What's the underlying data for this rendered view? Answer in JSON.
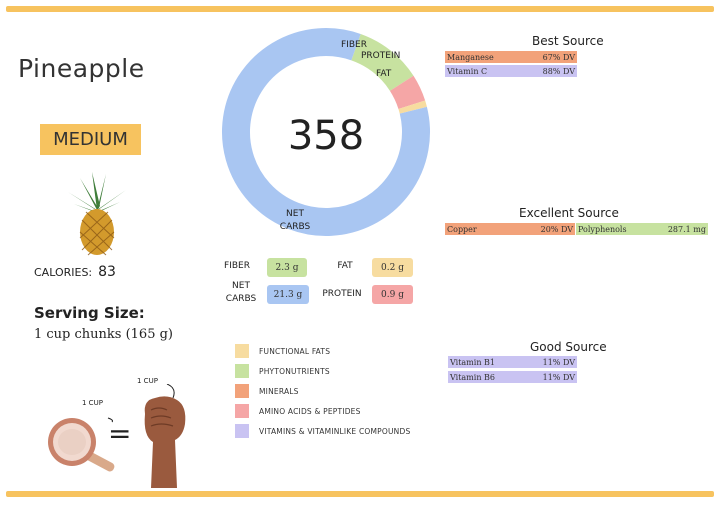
{
  "food": {
    "name": "Pineapple",
    "size": "MEDIUM",
    "calories_label": "CALORIES:",
    "calories_value": "83",
    "serving_title": "Serving Size:",
    "serving_value": "1 cup chunks (165 g)"
  },
  "donut": {
    "center_value": "358",
    "segments": [
      {
        "label": "FIBER",
        "fraction": 0.105,
        "color": "#c7e2a0"
      },
      {
        "label": "PROTEIN",
        "fraction": 0.042,
        "color": "#f5a6a6"
      },
      {
        "label": "FAT",
        "fraction": 0.01,
        "color": "#f7dca0"
      },
      {
        "label": "NET CARBS",
        "fraction": 0.843,
        "color": "#a9c6f2"
      }
    ],
    "net_carbs_label_line1": "NET",
    "net_carbs_label_line2": "CARBS"
  },
  "macros": {
    "fiber_label": "FIBER",
    "fiber_value": "2.3 g",
    "fat_label": "FAT",
    "fat_value": "0.2 g",
    "net_label_1": "NET",
    "net_label_2": "CARBS",
    "net_value": "21.3 g",
    "protein_label": "PROTEIN",
    "protein_value": "0.9 g",
    "fiber_color": "#c7e2a0",
    "fat_color": "#f7dca0",
    "net_color": "#a9c6f2",
    "protein_color": "#f5a6a6"
  },
  "legend": [
    {
      "label": "FUNCTIONAL FATS",
      "color": "#f7dca0"
    },
    {
      "label": "PHYTONUTRIENTS",
      "color": "#c7e2a0"
    },
    {
      "label": "MINERALS",
      "color": "#f2a27a"
    },
    {
      "label": "AMINO ACIDS & PEPTIDES",
      "color": "#f5a6a6"
    },
    {
      "label": "VITAMINS & VITAMINLIKE COMPOUNDS",
      "color": "#c9c3f2"
    }
  ],
  "best_source": {
    "title": "Best Source",
    "rows": [
      {
        "name": "Manganese",
        "value": "67% DV",
        "color": "#f2a27a"
      },
      {
        "name": "Vitamin C",
        "value": "88% DV",
        "color": "#c9c3f2"
      }
    ]
  },
  "excellent_source": {
    "title": "Excellent Source",
    "rows": [
      {
        "name": "Copper",
        "value": "20% DV",
        "color": "#f2a27a"
      },
      {
        "name": "Polyphenols",
        "value": "287.1 mg",
        "color": "#c7e2a0"
      }
    ]
  },
  "good_source": {
    "title": "Good Source",
    "rows": [
      {
        "name": "Vitamin B1",
        "value": "11% DV",
        "color": "#c9c3f2"
      },
      {
        "name": "Vitamin B6",
        "value": "11% DV",
        "color": "#c9c3f2"
      }
    ]
  },
  "illustration": {
    "cup_label_1": "1 CUP",
    "cup_label_2": "1 CUP",
    "equals": "="
  },
  "colors": {
    "accent": "#f7c35f"
  }
}
